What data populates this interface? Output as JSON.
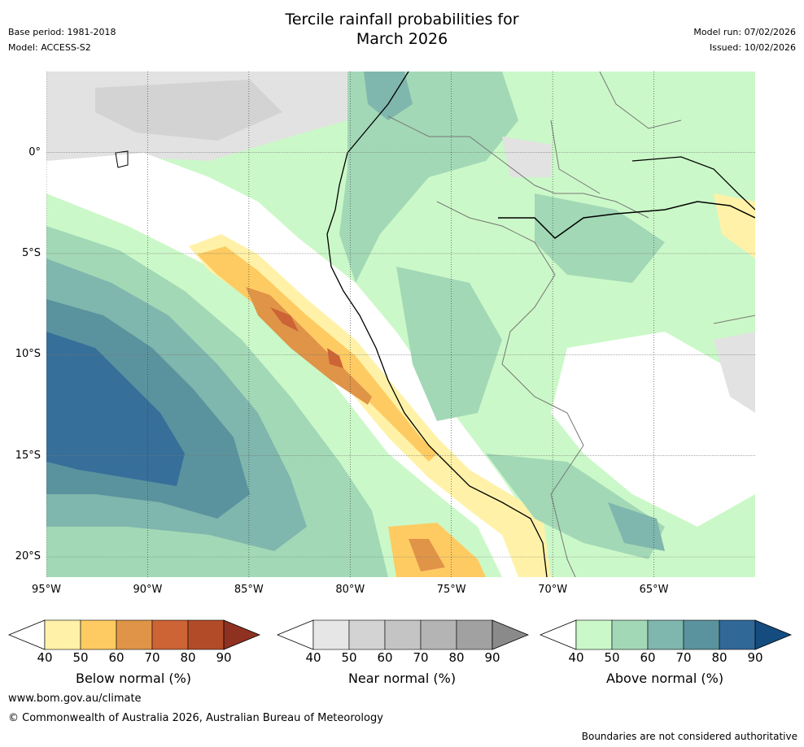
{
  "header": {
    "title_line1": "Tercile rainfall probabilities for",
    "title_line2": "March 2026",
    "base_period": "Base period: 1981-2018",
    "model": "Model: ACCESS-S2",
    "model_run": "Model run: 07/02/2026",
    "issued": "Issued: 10/02/2026"
  },
  "map": {
    "lat_labels": [
      "0°",
      "5°S",
      "10°S",
      "15°S",
      "20°S"
    ],
    "lon_labels": [
      "95°W",
      "90°W",
      "85°W",
      "80°W",
      "75°W",
      "70°W",
      "65°W"
    ],
    "lat_values": [
      0,
      -5,
      -10,
      -15,
      -20
    ],
    "lon_values": [
      -95,
      -90,
      -85,
      -80,
      -75,
      -70,
      -65
    ],
    "extent": {
      "lon_min": -95,
      "lon_max": -60,
      "lat_min": -21,
      "lat_max": 4
    }
  },
  "colorbars": [
    {
      "name": "below-normal",
      "label": "Below normal (%)",
      "ticks": [
        "40",
        "50",
        "60",
        "70",
        "80",
        "90"
      ],
      "colors": [
        "#fff2a8",
        "#fecb62",
        "#e09447",
        "#cc6436",
        "#b24c28",
        "#8f3120"
      ]
    },
    {
      "name": "near-normal",
      "label": "Near normal (%)",
      "ticks": [
        "40",
        "50",
        "60",
        "70",
        "80",
        "90"
      ],
      "colors": [
        "#e6e6e6",
        "#d3d3d3",
        "#c4c4c4",
        "#b4b4b4",
        "#a1a1a1",
        "#8a8a8a"
      ]
    },
    {
      "name": "above-normal",
      "label": "Above normal (%)",
      "ticks": [
        "40",
        "50",
        "60",
        "70",
        "80",
        "90"
      ],
      "colors": [
        "#cbf8c8",
        "#a2d8b6",
        "#7fb6ad",
        "#5a939e",
        "#306898",
        "#144c80"
      ]
    }
  ],
  "footer": {
    "website": "www.bom.gov.au/climate",
    "copyright": "© Commonwealth of Australia 2026, Australian Bureau of Meteorology",
    "disclaimer": "Boundaries are not considered authoritative"
  }
}
